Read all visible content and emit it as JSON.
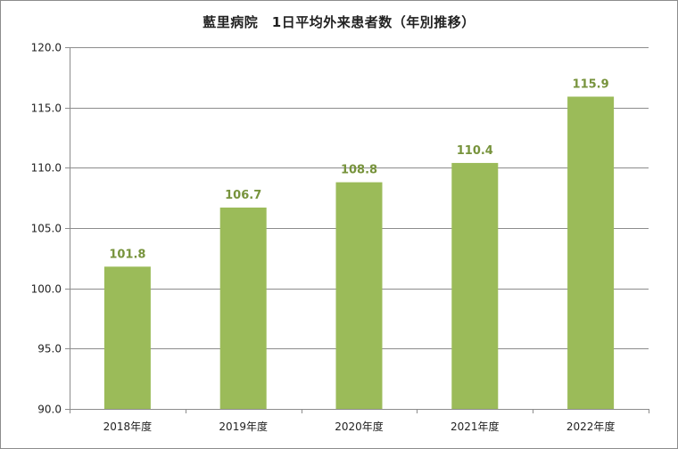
{
  "chart_data": {
    "type": "bar",
    "title": "藍里病院　1日平均外来患者数（年別推移）",
    "xlabel": "",
    "ylabel": "",
    "categories": [
      "2018年度",
      "2019年度",
      "2020年度",
      "2021年度",
      "2022年度"
    ],
    "values": [
      101.8,
      106.7,
      108.8,
      110.4,
      115.9
    ],
    "data_labels": [
      "101.8",
      "106.7",
      "108.8",
      "110.4",
      "115.9"
    ],
    "ylim": [
      90,
      120
    ],
    "yticks": [
      90,
      95,
      100,
      105,
      110,
      115,
      120
    ],
    "ytick_labels": [
      "90.0",
      "95.0",
      "100.0",
      "105.0",
      "110.0",
      "115.0",
      "120.0"
    ],
    "grid": true,
    "legend": "none",
    "colors": {
      "bar": "#9bbb59",
      "data_label": "#77933c",
      "grid": "#8c8c8c",
      "axis": "#8c8c8c"
    }
  }
}
